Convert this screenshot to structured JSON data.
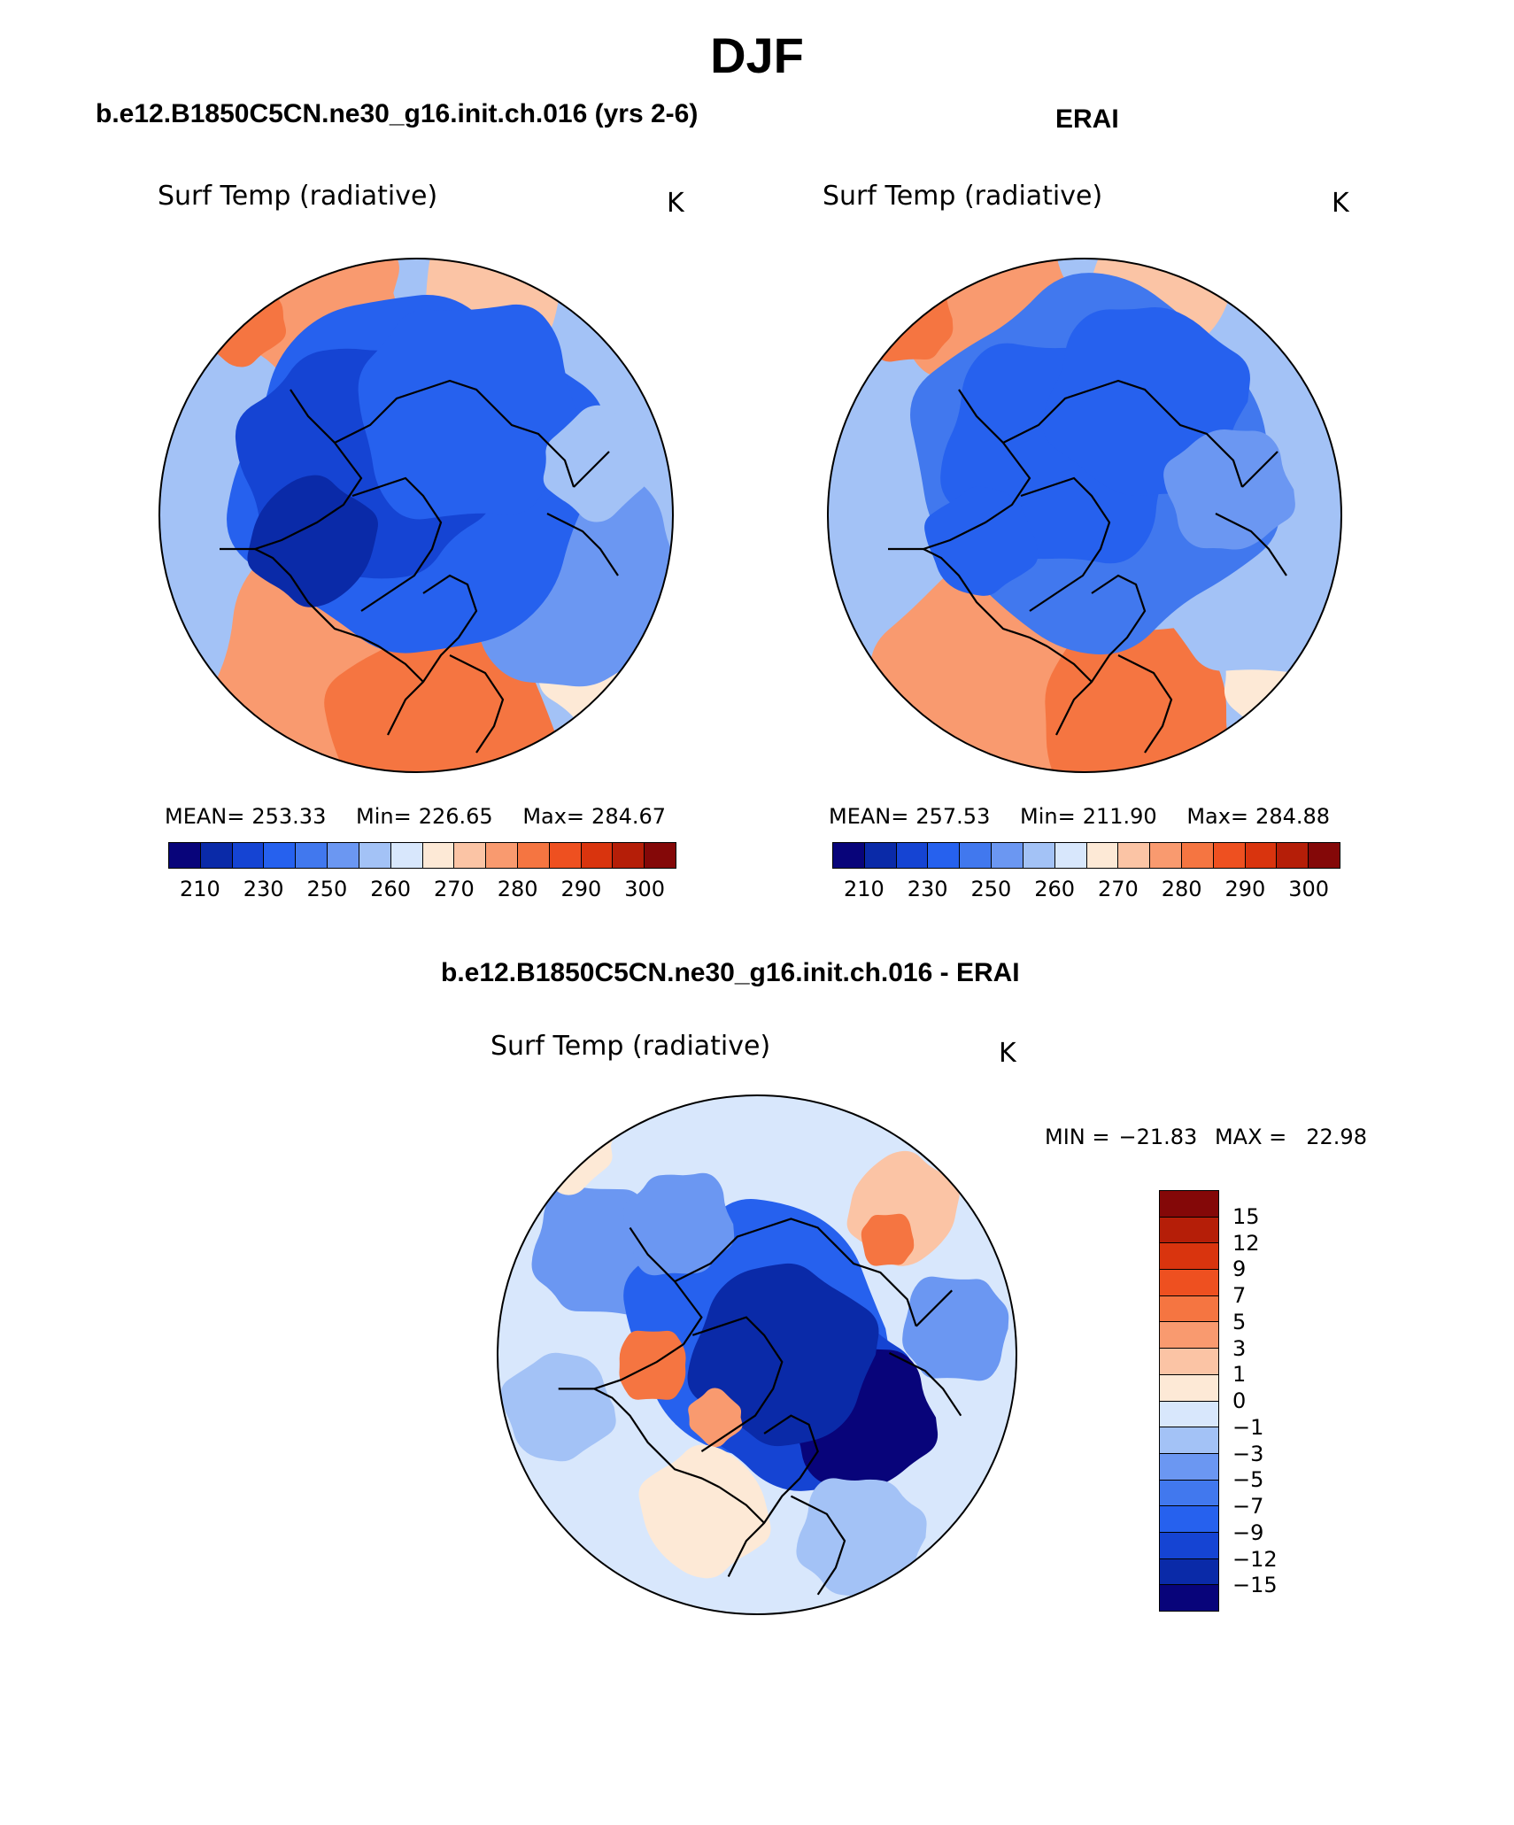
{
  "page": {
    "title": "DJF",
    "panel_titles": {
      "model": "b.e12.B1850C5CN.ne30_g16.init.ch.016 (yrs 2-6)",
      "obs": "ERAI",
      "diff": "b.e12.B1850C5CN.ne30_g16.init.ch.016 - ERAI"
    }
  },
  "colors": {
    "abs_palette": [
      "#08047a",
      "#0a2aa8",
      "#1544d3",
      "#2661ee",
      "#4178ee",
      "#6b97f2",
      "#a3c2f6",
      "#d8e7fc",
      "#fde9d6",
      "#fbc4a5",
      "#f99a6f",
      "#f57541",
      "#ee5020",
      "#d9340e",
      "#b51e08",
      "#840808"
    ],
    "diff_palette": [
      "#08047a",
      "#0a2aa8",
      "#1544d3",
      "#2661ee",
      "#4178ee",
      "#6b97f2",
      "#a3c2f6",
      "#d8e7fc",
      "#fde9d6",
      "#fbc4a5",
      "#f99a6f",
      "#f57541",
      "#ee5020",
      "#d9340e",
      "#b51e08",
      "#840808"
    ]
  },
  "chart_data": [
    {
      "type": "heatmap",
      "projection": "north-polar-stereographic",
      "title": "Surf Temp (radiative)",
      "units": "K",
      "stats": {
        "mean_label": "MEAN=",
        "mean": "253.33",
        "min_label": "Min=",
        "min": "226.65",
        "max_label": "Max=",
        "max": "284.67"
      },
      "contour_levels": [
        205,
        210,
        220,
        230,
        240,
        250,
        255,
        260,
        265,
        270,
        275,
        280,
        285,
        290,
        295,
        300
      ],
      "tick_labels": [
        "210",
        "230",
        "250",
        "260",
        "270",
        "280",
        "290",
        "300"
      ]
    },
    {
      "type": "heatmap",
      "projection": "north-polar-stereographic",
      "title": "Surf Temp (radiative)",
      "units": "K",
      "stats": {
        "mean_label": "MEAN=",
        "mean": "257.53",
        "min_label": "Min=",
        "min": "211.90",
        "max_label": "Max=",
        "max": "284.88"
      },
      "contour_levels": [
        205,
        210,
        220,
        230,
        240,
        250,
        255,
        260,
        265,
        270,
        275,
        280,
        285,
        290,
        295,
        300
      ],
      "tick_labels": [
        "210",
        "230",
        "250",
        "260",
        "270",
        "280",
        "290",
        "300"
      ]
    },
    {
      "type": "heatmap",
      "projection": "north-polar-stereographic",
      "title": "Surf Temp (radiative)",
      "units": "K",
      "stats": {
        "min_label": "MIN =",
        "min": "−21.83",
        "max_label": "MAX =",
        "max": "22.98"
      },
      "contour_levels": [
        -15,
        -12,
        -9,
        -7,
        -5,
        -3,
        -1,
        0,
        1,
        3,
        5,
        7,
        9,
        12,
        15
      ],
      "tick_labels": [
        "15",
        "12",
        "9",
        "7",
        "5",
        "3",
        "1",
        "0",
        "−1",
        "−3",
        "−5",
        "−7",
        "−9",
        "−12",
        "−15"
      ]
    }
  ]
}
